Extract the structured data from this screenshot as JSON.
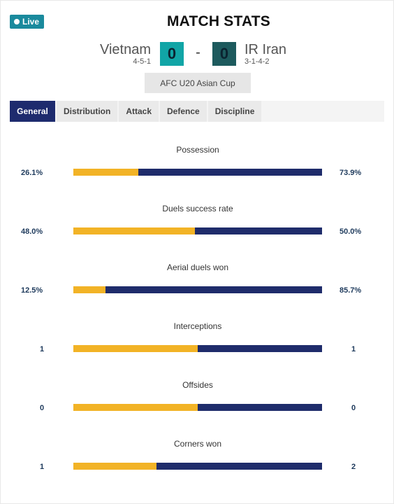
{
  "header": {
    "live_label": "Live",
    "title": "MATCH STATS"
  },
  "match": {
    "home": {
      "name": "Vietnam",
      "formation": "4-5-1",
      "score": "0"
    },
    "away": {
      "name": "IR Iran",
      "formation": "3-1-4-2",
      "score": "0"
    },
    "separator": "-",
    "competition": "AFC U20 Asian Cup"
  },
  "tabs": [
    {
      "label": "General",
      "active": true
    },
    {
      "label": "Distribution",
      "active": false
    },
    {
      "label": "Attack",
      "active": false
    },
    {
      "label": "Defence",
      "active": false
    },
    {
      "label": "Discipline",
      "active": false
    }
  ],
  "colors": {
    "home_bar": "#f2b326",
    "away_bar": "#1f2c6b",
    "active_tab": "#1e2b6e",
    "live_badge": "#1a8a9d"
  },
  "stats": [
    {
      "label": "Possession",
      "home": "26.1%",
      "away": "73.9%",
      "home_share": 0.261
    },
    {
      "label": "Duels success rate",
      "home": "48.0%",
      "away": "50.0%",
      "home_share": 0.49
    },
    {
      "label": "Aerial duels won",
      "home": "12.5%",
      "away": "85.7%",
      "home_share": 0.13
    },
    {
      "label": "Interceptions",
      "home": "1",
      "away": "1",
      "home_share": 0.5
    },
    {
      "label": "Offsides",
      "home": "0",
      "away": "0",
      "home_share": 0.5
    },
    {
      "label": "Corners won",
      "home": "1",
      "away": "2",
      "home_share": 0.333
    }
  ]
}
